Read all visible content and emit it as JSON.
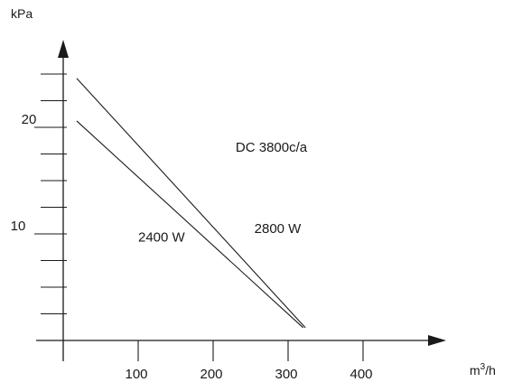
{
  "chart_data": {
    "type": "line",
    "title": "",
    "xlabel": "m³/h",
    "ylabel": "kPa",
    "xlim": [
      0,
      500
    ],
    "ylim": [
      0,
      26
    ],
    "x_ticks": [
      100,
      200,
      300,
      400
    ],
    "x_tick_labels": [
      "100",
      "200",
      "300",
      "400"
    ],
    "y_ticks": [
      2.5,
      5,
      7.5,
      10,
      12.5,
      15,
      17.5,
      20,
      22.5,
      25
    ],
    "y_labeled_ticks": [
      {
        "value": 10,
        "label": "10"
      },
      {
        "value": 20,
        "label": "20"
      }
    ],
    "grid": false,
    "series": [
      {
        "name": "2400 W",
        "x": [
          18,
          320
        ],
        "y": [
          20.6,
          1.2
        ]
      },
      {
        "name": "2800 W",
        "x": [
          18,
          323
        ],
        "y": [
          24.6,
          1.2
        ]
      }
    ],
    "annotations": [
      {
        "text": "DC 3800c/a",
        "x": 230,
        "y": 17.7
      },
      {
        "text": "2400 W",
        "x": 100,
        "y": 9.3
      },
      {
        "text": "2800 W",
        "x": 255,
        "y": 10.1
      }
    ]
  }
}
